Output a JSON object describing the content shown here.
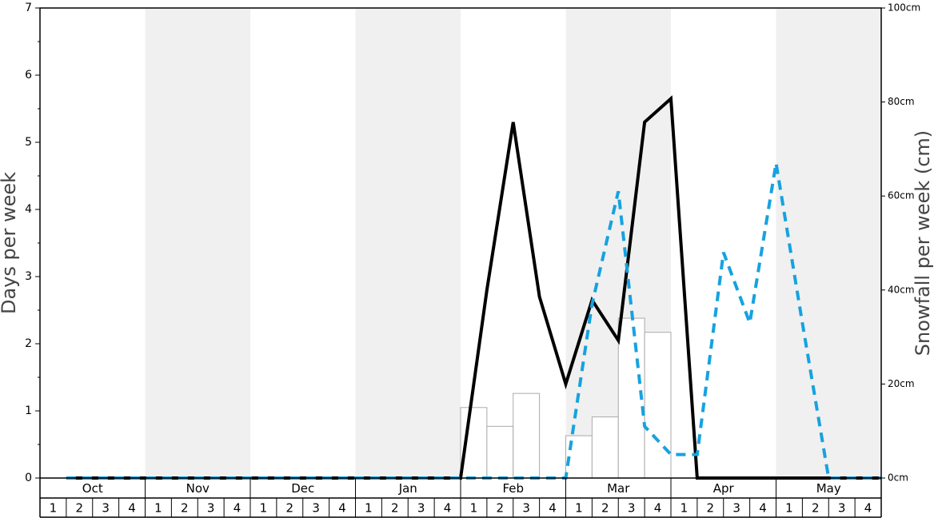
{
  "chart_data": {
    "type": "line",
    "ylabel": "Days per week",
    "y2label": "Snowfall per week (cm)",
    "months": [
      "Oct",
      "Nov",
      "Dec",
      "Jan",
      "Feb",
      "Mar",
      "Apr",
      "May"
    ],
    "categories": [
      "1",
      "2",
      "3",
      "4",
      "1",
      "2",
      "3",
      "4",
      "1",
      "2",
      "3",
      "4",
      "1",
      "2",
      "3",
      "4",
      "1",
      "2",
      "3",
      "4",
      "1",
      "2",
      "3",
      "4",
      "1",
      "2",
      "3",
      "4",
      "1",
      "2",
      "3",
      "4"
    ],
    "ylim": [
      0,
      7
    ],
    "yticks": [
      0,
      1,
      2,
      3,
      4,
      5,
      6,
      7
    ],
    "y2lim": [
      0,
      100
    ],
    "y2ticks": [
      {
        "value": 0,
        "label": "0cm"
      },
      {
        "value": 20,
        "label": "20cm"
      },
      {
        "value": 40,
        "label": "40cm"
      },
      {
        "value": 60,
        "label": "60cm"
      },
      {
        "value": 80,
        "label": "80cm"
      },
      {
        "value": 100,
        "label": "100cm"
      }
    ],
    "shade_color": "#f0f0f0",
    "bars": {
      "color": "#ffffff",
      "edge": "#aaaaaa",
      "values": [
        0,
        0,
        0,
        0,
        0,
        0,
        0,
        0,
        0,
        0,
        0,
        0,
        0,
        0,
        0,
        0,
        1.05,
        0.77,
        1.26,
        0,
        0.63,
        0.91,
        2.38,
        2.17,
        0,
        0,
        0,
        0,
        0,
        0,
        0,
        0
      ]
    },
    "series": [
      {
        "color": "#000000",
        "style": "solid",
        "values": [
          0,
          0,
          0,
          0,
          0,
          0,
          0,
          0,
          0,
          0,
          0,
          0,
          0,
          0,
          0,
          0,
          2.8,
          5.3,
          2.7,
          1.4,
          2.65,
          2.05,
          5.3,
          5.65,
          0,
          0,
          0,
          0,
          0,
          0,
          0,
          0
        ]
      },
      {
        "color": "#16a2e0",
        "style": "dashed",
        "axis": "y2",
        "values": [
          0,
          0,
          0,
          0,
          0,
          0,
          0,
          0,
          0,
          0,
          0,
          0,
          0,
          0,
          0,
          0,
          0,
          0,
          0,
          0,
          37,
          61,
          11,
          5,
          5,
          48,
          33,
          67,
          33,
          0,
          0,
          0
        ]
      }
    ]
  }
}
